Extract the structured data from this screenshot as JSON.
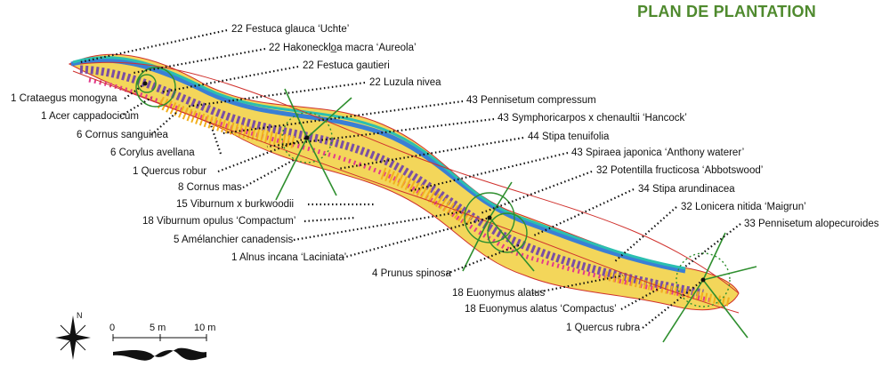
{
  "title": "PLAN DE PLANTATION",
  "labels": [
    "22 Festuca glauca ‘Uchte’",
    "22 Hakonecklo̲a macra ‘Aureola’",
    "22 Festuca gautieri",
    "22 Luzula nivea",
    "43 Pennisetum compressum",
    "43 Symphoricarpos x chenaultii ‘Hancock’",
    "44 Stipa tenuifolia",
    "43 Spiraea japonica ‘Anthony waterer’",
    "32 Potentilla fructicosa ‘Abbotswood’",
    "34 Stipa arundinacea",
    "32 Lonicera nitida ‘Maigrun’",
    "33 Pennisetum alopecuroides",
    "1 Crataegus monogyna",
    "1 Acer cappadocicum",
    "6 Cornus sanguinea",
    "6 Corylus avellana",
    "1 Quercus robur",
    "8 Cornus mas",
    "15 Viburnum x burkwoodii",
    "18 Viburnum opulus ‘Compactum’",
    "5 Amélanchier canadensis",
    "1 Alnus incana ‘Laciniata’",
    "4 Prunus spinosa",
    "18 Euonymus alatus",
    "18 Euonymus alatus ‘Compactus’",
    "1 Quercus rubra"
  ],
  "scale": {
    "zero": "0",
    "mid": "5 m",
    "end": "10 m"
  },
  "north": "N",
  "colors": {
    "title": "#4f8a2e",
    "tree_green": "#2f8f2f",
    "hedge_red": "#d0312d",
    "grass_yellow": "#f2b01e",
    "ground_purple": "#7b4fa3",
    "band_blue": "#3a7fd5"
  }
}
